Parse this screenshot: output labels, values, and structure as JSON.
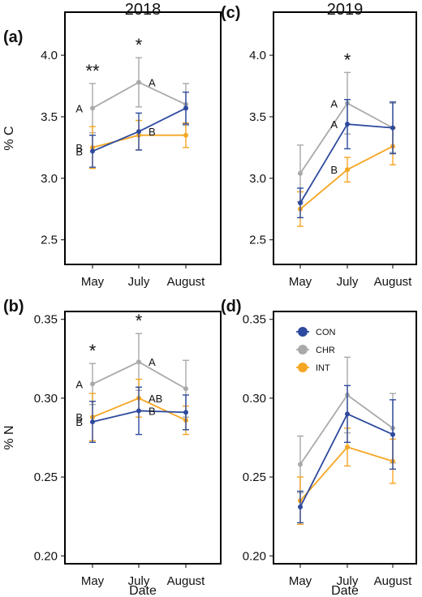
{
  "colors": {
    "CON": "#2e4a9e",
    "CHR": "#a9a9a9",
    "INT": "#f5a623"
  },
  "chart_data": [
    {
      "panel": "(a)",
      "title": "2018",
      "type": "line",
      "ylabel": "% C",
      "xlabel": "",
      "ylim": [
        2.3,
        4.35
      ],
      "yticks": [
        "2.5",
        "3.0",
        "3.5",
        "4.0"
      ],
      "ytick_values": [
        2.5,
        3.0,
        3.5,
        4.0
      ],
      "categories": [
        "May",
        "July",
        "August"
      ],
      "series": [
        {
          "name": "CON",
          "values": [
            3.22,
            3.38,
            3.57
          ],
          "err": [
            0.13,
            0.15,
            0.13
          ]
        },
        {
          "name": "CHR",
          "values": [
            3.57,
            3.78,
            3.6
          ],
          "err": [
            0.2,
            0.2,
            0.17
          ]
        },
        {
          "name": "INT",
          "values": [
            3.25,
            3.35,
            3.35
          ],
          "err": [
            0.17,
            0.12,
            0.1
          ]
        }
      ],
      "significance": [
        "**",
        "*",
        ""
      ],
      "letters": [
        {
          "cat": 0,
          "series": "CHR",
          "text": "A",
          "side": "left"
        },
        {
          "cat": 0,
          "series": "INT",
          "text": "B",
          "side": "left"
        },
        {
          "cat": 0,
          "series": "CON",
          "text": "B",
          "side": "left"
        },
        {
          "cat": 1,
          "series": "CHR",
          "text": "A",
          "side": "right"
        },
        {
          "cat": 1,
          "series": "CON",
          "text": "B",
          "side": "right"
        }
      ]
    },
    {
      "panel": "(c)",
      "title": "2019",
      "type": "line",
      "ylabel": "",
      "xlabel": "",
      "ylim": [
        2.3,
        4.35
      ],
      "yticks": [
        "2.5",
        "3.0",
        "3.5",
        "4.0"
      ],
      "ytick_values": [
        2.5,
        3.0,
        3.5,
        4.0
      ],
      "categories": [
        "May",
        "July",
        "August"
      ],
      "series": [
        {
          "name": "CON",
          "values": [
            2.8,
            3.44,
            3.41
          ],
          "err": [
            0.12,
            0.2,
            0.21
          ]
        },
        {
          "name": "CHR",
          "values": [
            3.04,
            3.61,
            3.41
          ],
          "err": [
            0.23,
            0.25,
            0.2
          ]
        },
        {
          "name": "INT",
          "values": [
            2.75,
            3.07,
            3.26
          ],
          "err": [
            0.14,
            0.1,
            0.15
          ]
        }
      ],
      "significance": [
        "",
        "*",
        ""
      ],
      "letters": [
        {
          "cat": 1,
          "series": "CHR",
          "text": "A",
          "side": "left"
        },
        {
          "cat": 1,
          "series": "CON",
          "text": "A",
          "side": "left"
        },
        {
          "cat": 1,
          "series": "INT",
          "text": "B",
          "side": "left"
        }
      ]
    },
    {
      "panel": "(b)",
      "title": "",
      "type": "line",
      "ylabel": "% N",
      "xlabel": "Date",
      "ylim": [
        0.195,
        0.355
      ],
      "yticks": [
        "0.20",
        "0.25",
        "0.30",
        "0.35"
      ],
      "ytick_values": [
        0.2,
        0.25,
        0.3,
        0.35
      ],
      "categories": [
        "May",
        "July",
        "August"
      ],
      "series": [
        {
          "name": "CON",
          "values": [
            0.285,
            0.292,
            0.291
          ],
          "err": [
            0.013,
            0.015,
            0.011
          ]
        },
        {
          "name": "CHR",
          "values": [
            0.309,
            0.323,
            0.306
          ],
          "err": [
            0.013,
            0.018,
            0.018
          ]
        },
        {
          "name": "INT",
          "values": [
            0.288,
            0.3,
            0.286
          ],
          "err": [
            0.015,
            0.012,
            0.009
          ]
        }
      ],
      "significance": [
        "*",
        "*",
        ""
      ],
      "letters": [
        {
          "cat": 0,
          "series": "CHR",
          "text": "A",
          "side": "left"
        },
        {
          "cat": 0,
          "series": "INT",
          "text": "B",
          "side": "left"
        },
        {
          "cat": 0,
          "series": "CON",
          "text": "B",
          "side": "left"
        },
        {
          "cat": 1,
          "series": "CHR",
          "text": "A",
          "side": "right"
        },
        {
          "cat": 1,
          "series": "INT",
          "text": "AB",
          "side": "right"
        },
        {
          "cat": 1,
          "series": "CON",
          "text": "B",
          "side": "right"
        }
      ]
    },
    {
      "panel": "(d)",
      "title": "",
      "type": "line",
      "ylabel": "",
      "xlabel": "Date",
      "ylim": [
        0.195,
        0.355
      ],
      "yticks": [
        "0.20",
        "0.25",
        "0.30",
        "0.35"
      ],
      "ytick_values": [
        0.2,
        0.25,
        0.3,
        0.35
      ],
      "categories": [
        "May",
        "July",
        "August"
      ],
      "series": [
        {
          "name": "CON",
          "values": [
            0.231,
            0.29,
            0.277
          ],
          "err": [
            0.01,
            0.018,
            0.022
          ]
        },
        {
          "name": "CHR",
          "values": [
            0.258,
            0.302,
            0.281
          ],
          "err": [
            0.018,
            0.024,
            0.022
          ]
        },
        {
          "name": "INT",
          "values": [
            0.235,
            0.269,
            0.26
          ],
          "err": [
            0.015,
            0.012,
            0.014
          ]
        }
      ],
      "significance": [
        "",
        "",
        ""
      ],
      "letters": [],
      "legend": {
        "entries": [
          "CON",
          "CHR",
          "INT"
        ],
        "placement": "top-left"
      }
    }
  ]
}
